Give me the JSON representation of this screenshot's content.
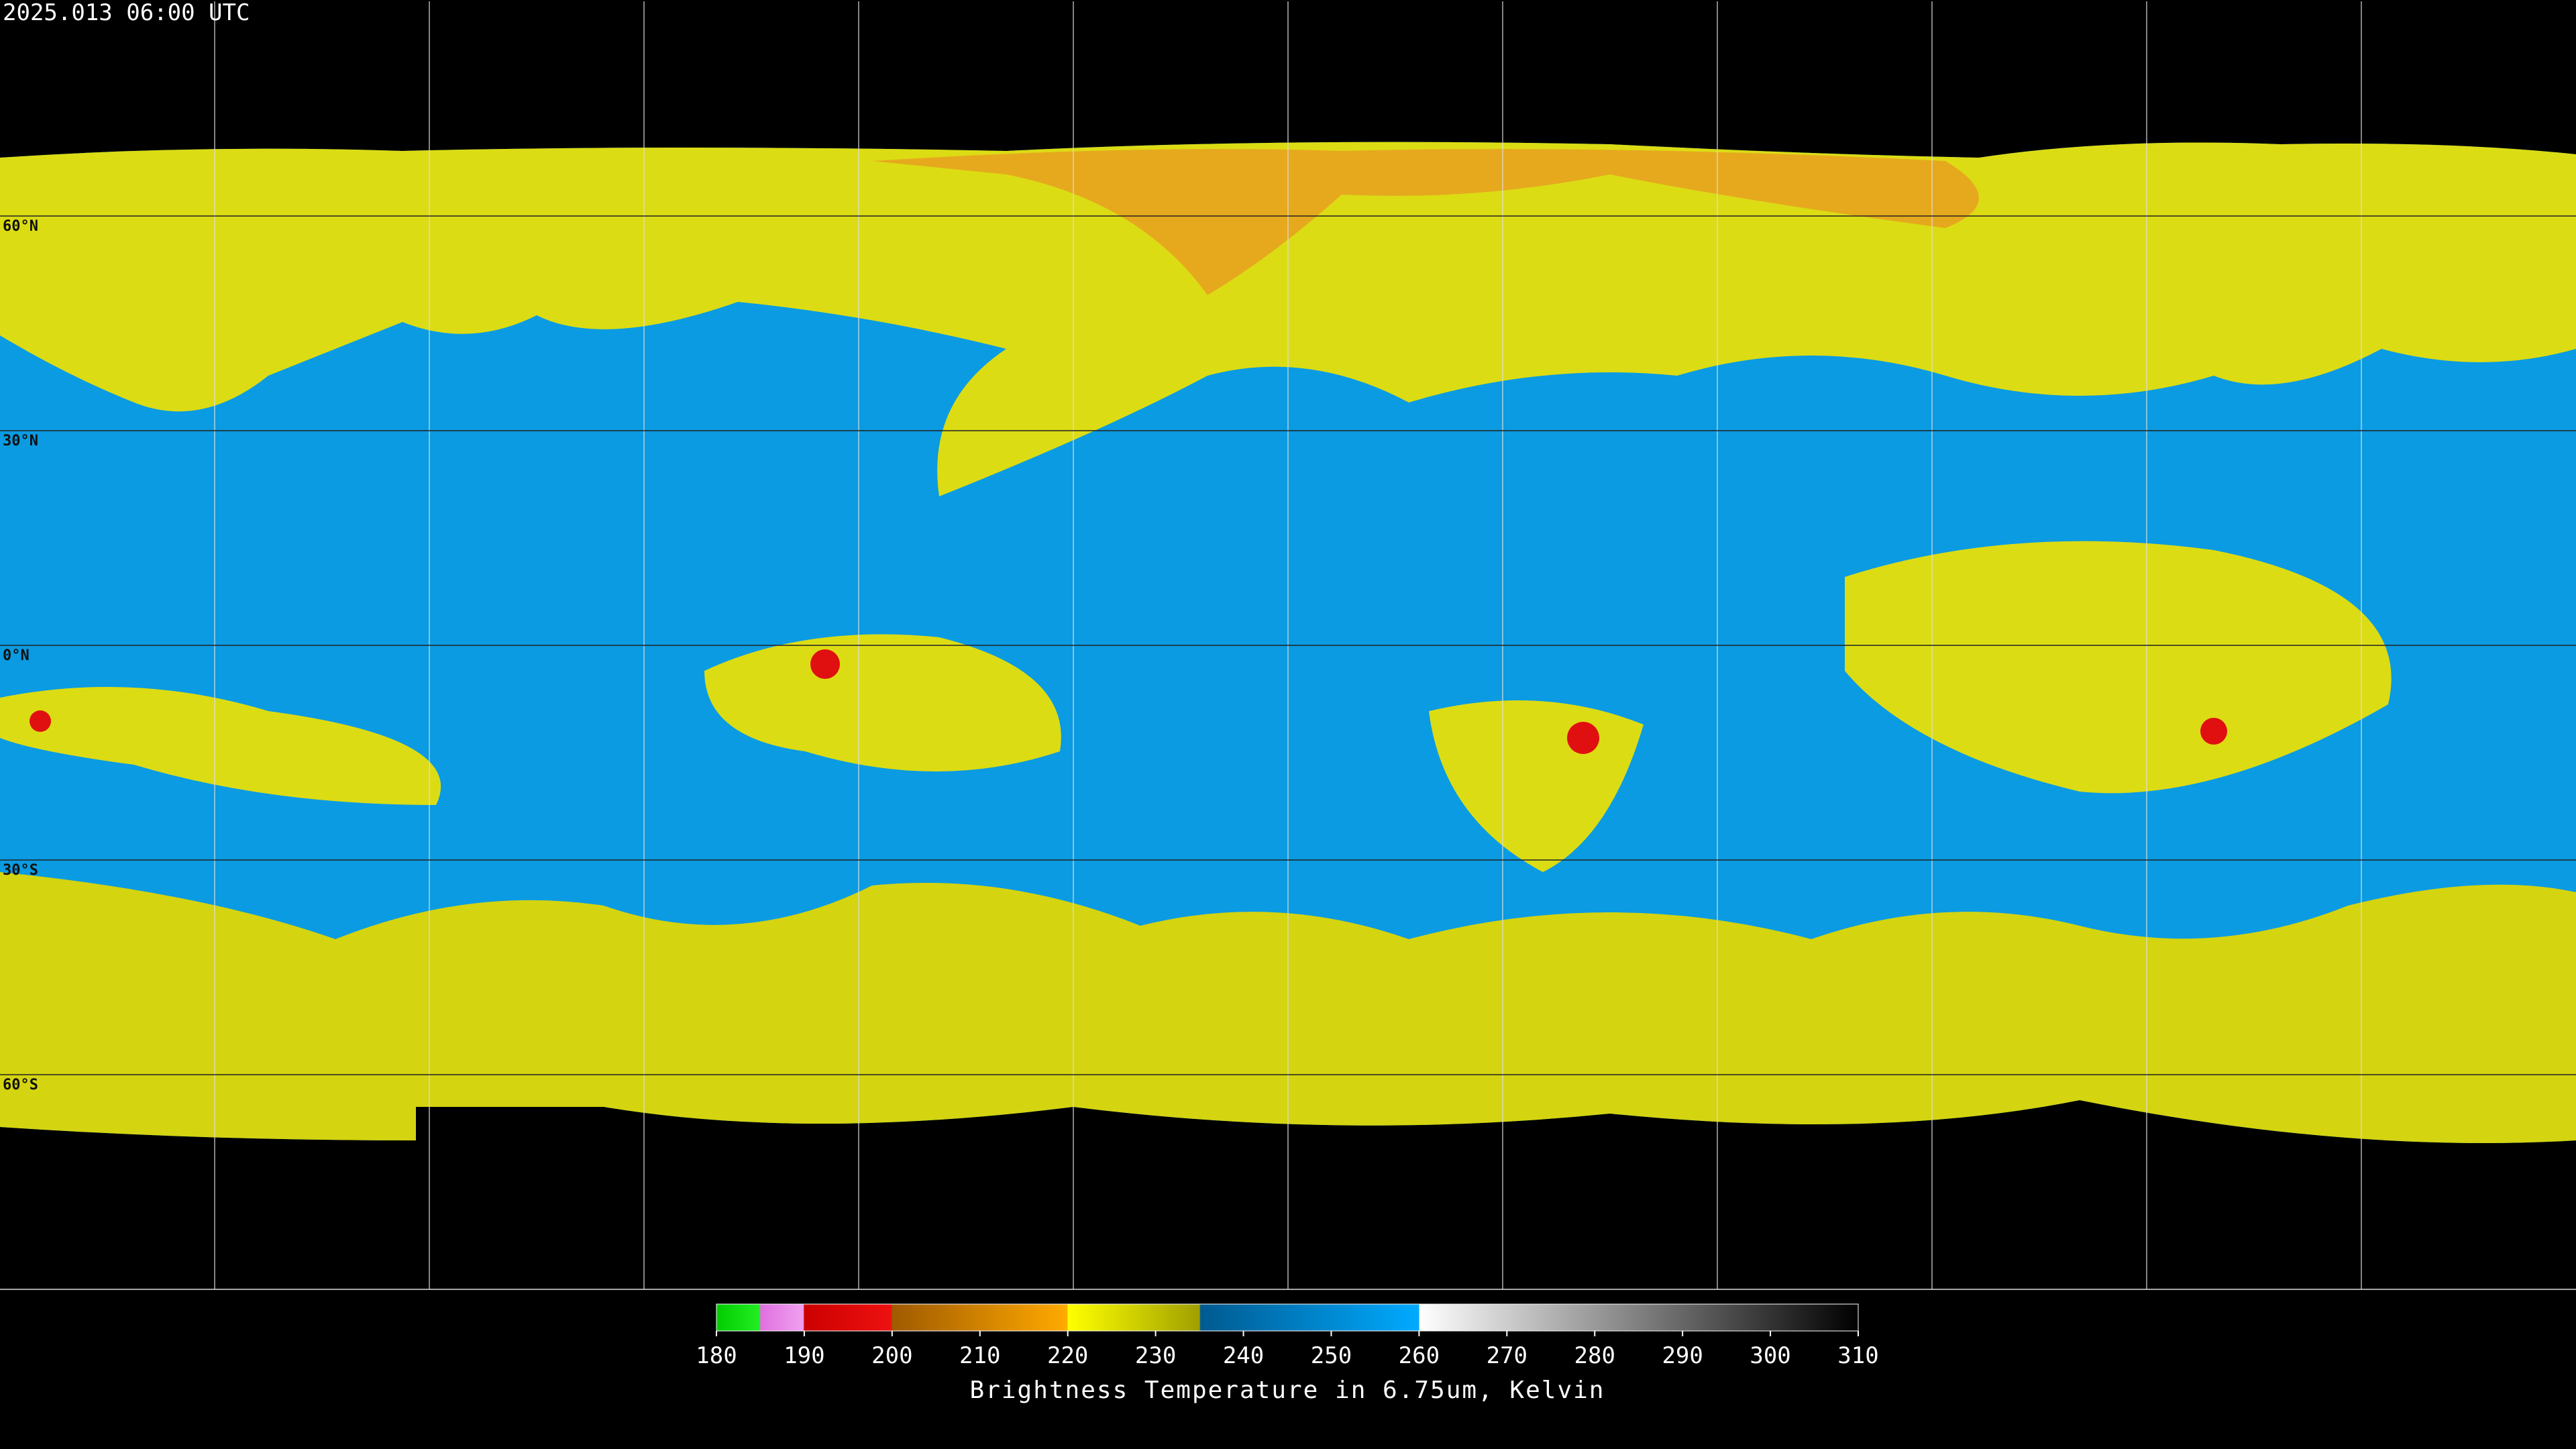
{
  "header": {
    "timestamp": "2025.013 06:00 UTC"
  },
  "map": {
    "lat_labels": [
      "60°N",
      "30°N",
      "0°N",
      "30°S",
      "60°S"
    ]
  },
  "colorbar": {
    "ticks": [
      180,
      190,
      200,
      210,
      220,
      230,
      240,
      250,
      260,
      270,
      280,
      290,
      300,
      310
    ],
    "label": "Brightness Temperature in 6.75um, Kelvin"
  }
}
